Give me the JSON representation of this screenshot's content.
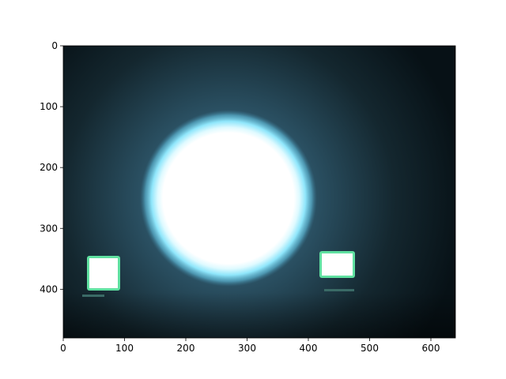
{
  "chart_data": {
    "type": "image",
    "xlim": [
      0,
      640
    ],
    "xticks": [
      0,
      100,
      200,
      300,
      400,
      500,
      600
    ],
    "ylim": [
      480,
      0
    ],
    "yticks": [
      0,
      100,
      200,
      300,
      400
    ]
  }
}
